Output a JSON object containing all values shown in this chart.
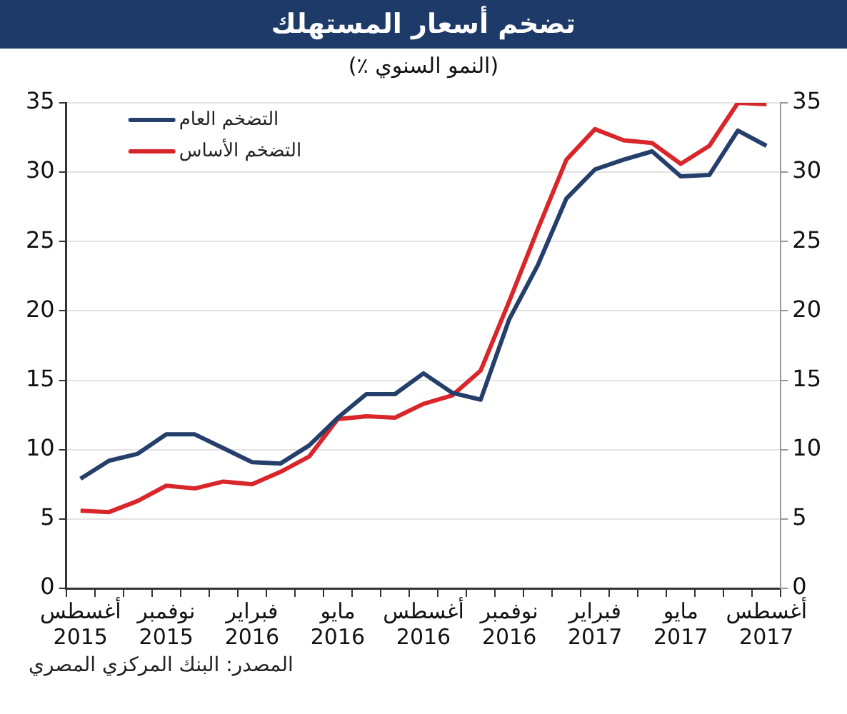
{
  "chart_data": {
    "type": "line",
    "title": "تضخم أسعار المستهلك",
    "subtitle": "(٪ النمو السنوي)",
    "categories": [
      "أغسطس\n2015",
      null,
      null,
      "نوفمبر\n2015",
      null,
      null,
      "فبراير\n2016",
      null,
      null,
      "مايو\n2016",
      null,
      null,
      "أغسطس\n2016",
      null,
      null,
      "نوفمبر\n2016",
      null,
      null,
      "فبراير\n2017",
      null,
      null,
      "مايو\n2017",
      null,
      null,
      "أغسطس\n2017"
    ],
    "series": [
      {
        "name": "التضخم العام",
        "color": "#253f6b",
        "values": [
          7.9,
          9.2,
          9.7,
          11.1,
          11.1,
          10.1,
          9.1,
          9.0,
          10.3,
          12.3,
          14.0,
          14.0,
          15.5,
          14.1,
          13.6,
          19.4,
          23.3,
          28.1,
          30.2,
          30.9,
          31.5,
          29.7,
          29.8,
          33.0,
          31.9
        ]
      },
      {
        "name": "التضخم الأساس",
        "color": "#d9262b",
        "values": [
          5.6,
          5.5,
          6.3,
          7.4,
          7.2,
          7.7,
          7.5,
          8.4,
          9.5,
          12.2,
          12.4,
          12.3,
          13.3,
          13.9,
          15.7,
          20.7,
          25.9,
          30.9,
          33.1,
          32.3,
          32.1,
          30.6,
          31.9,
          35.0,
          34.9
        ]
      }
    ],
    "ylim": [
      0,
      35
    ],
    "yticks": [
      0,
      5,
      10,
      15,
      20,
      25,
      30,
      35
    ],
    "y2lim": [
      0,
      35
    ],
    "y2ticks": [
      0,
      5,
      10,
      15,
      20,
      25,
      30,
      35
    ],
    "grid": "y",
    "legend": "top left",
    "marker": "none",
    "line_style": "solid",
    "annotations": [
      "المصدر: البنك المركزي المصري"
    ]
  }
}
